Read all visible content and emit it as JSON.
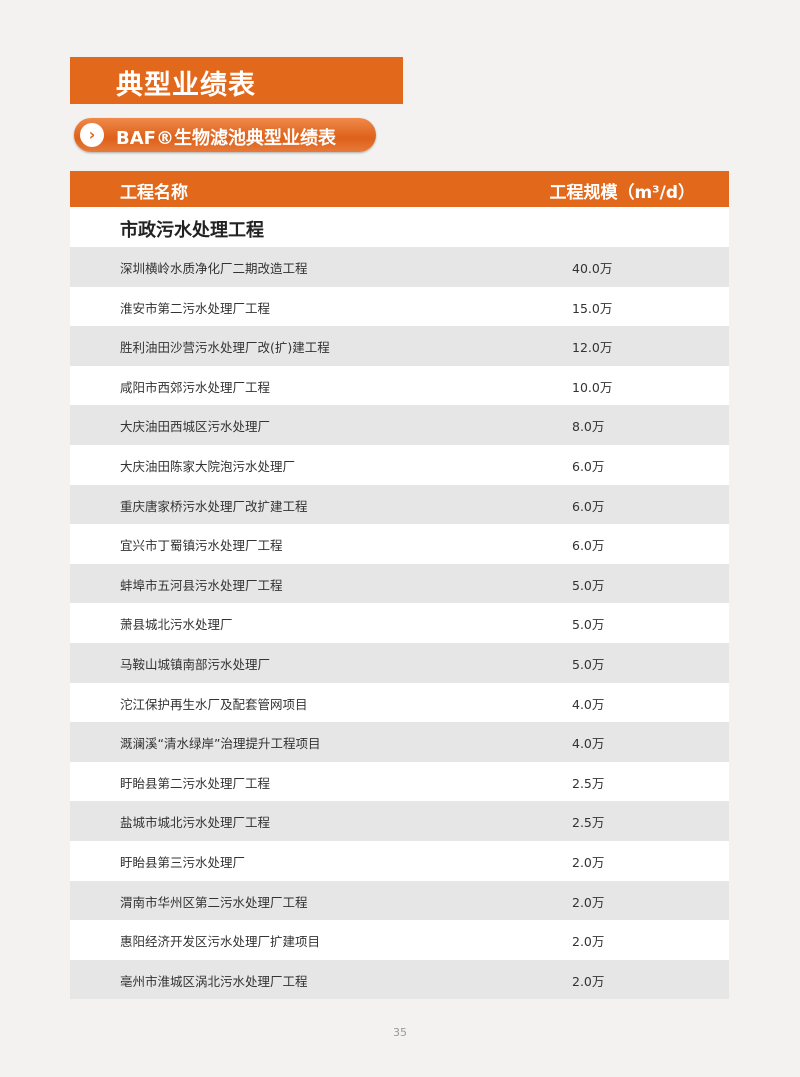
{
  "title": "典型业绩表",
  "subtitle": "BAF®生物滤池典型业绩表",
  "table": {
    "headers": [
      "工程名称",
      "工程规模（m³/d）"
    ],
    "section": "市政污水处理工程",
    "rows": [
      {
        "name": "深圳横岭水质净化厂二期改造工程",
        "scale": "40.0万"
      },
      {
        "name": "淮安市第二污水处理厂工程",
        "scale": "15.0万"
      },
      {
        "name": "胜利油田沙营污水处理厂改(扩)建工程",
        "scale": "12.0万"
      },
      {
        "name": "咸阳市西郊污水处理厂工程",
        "scale": "10.0万"
      },
      {
        "name": "大庆油田西城区污水处理厂",
        "scale": "8.0万"
      },
      {
        "name": "大庆油田陈家大院泡污水处理厂",
        "scale": "6.0万"
      },
      {
        "name": "重庆唐家桥污水处理厂改扩建工程",
        "scale": "6.0万"
      },
      {
        "name": "宜兴市丁蜀镇污水处理厂工程",
        "scale": "6.0万"
      },
      {
        "name": "蚌埠市五河县污水处理厂工程",
        "scale": "5.0万"
      },
      {
        "name": "萧县城北污水处理厂",
        "scale": "5.0万"
      },
      {
        "name": "马鞍山城镇南部污水处理厂",
        "scale": "5.0万"
      },
      {
        "name": "沱江保护再生水厂及配套管网项目",
        "scale": "4.0万"
      },
      {
        "name": "溉澜溪“清水绿岸”治理提升工程项目",
        "scale": "4.0万"
      },
      {
        "name": "盱眙县第二污水处理厂工程",
        "scale": "2.5万"
      },
      {
        "name": "盐城市城北污水处理厂工程",
        "scale": "2.5万"
      },
      {
        "name": "盱眙县第三污水处理厂",
        "scale": "2.0万"
      },
      {
        "name": "渭南市华州区第二污水处理厂工程",
        "scale": "2.0万"
      },
      {
        "name": "惠阳经济开发区污水处理厂扩建项目",
        "scale": "2.0万"
      },
      {
        "name": "亳州市淮城区涡北污水处理厂工程",
        "scale": "2.0万"
      }
    ]
  },
  "page_number": "35",
  "colors": {
    "accent": "#e2681c",
    "row_alt": "#e6e6e6"
  },
  "icons": {
    "pill": "chevron-right-icon"
  }
}
